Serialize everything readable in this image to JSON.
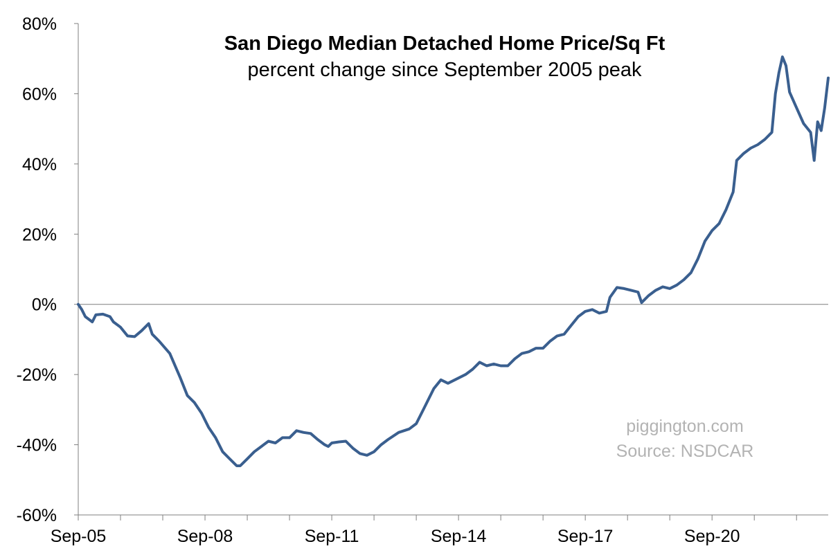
{
  "chart_data": {
    "type": "line",
    "title": "San Diego Median Detached Home Price/Sq Ft",
    "subtitle": "percent change since September 2005 peak",
    "xlabel": "",
    "ylabel": "",
    "ylim": [
      -60,
      80
    ],
    "y_ticks": [
      -60,
      -40,
      -20,
      0,
      20,
      40,
      60,
      80
    ],
    "y_tick_labels": [
      "-60%",
      "-40%",
      "-20%",
      "0%",
      "20%",
      "40%",
      "60%",
      "80%"
    ],
    "x_range": [
      "2005-09",
      "2023-06"
    ],
    "x_tick_labels": [
      "Sep-05",
      "Sep-08",
      "Sep-11",
      "Sep-14",
      "Sep-17",
      "Sep-20"
    ],
    "x_tick_dates": [
      "2005-09",
      "2008-09",
      "2011-09",
      "2014-09",
      "2017-09",
      "2020-09"
    ],
    "grid": false,
    "zero_line": true,
    "line_color": "#3a5f8f",
    "series": [
      {
        "points": [
          [
            "2005-09",
            0
          ],
          [
            "2005-10",
            -1.5
          ],
          [
            "2005-11",
            -3.5
          ],
          [
            "2006-01",
            -5
          ],
          [
            "2006-02",
            -3
          ],
          [
            "2006-04",
            -2.8
          ],
          [
            "2006-06",
            -3.5
          ],
          [
            "2006-07",
            -5
          ],
          [
            "2006-09",
            -6.5
          ],
          [
            "2006-11",
            -9
          ],
          [
            "2007-01",
            -9.2
          ],
          [
            "2007-03",
            -7.5
          ],
          [
            "2007-05",
            -5.5
          ],
          [
            "2007-06",
            -8.5
          ],
          [
            "2007-08",
            -10.5
          ],
          [
            "2007-11",
            -14
          ],
          [
            "2008-02",
            -21
          ],
          [
            "2008-04",
            -26
          ],
          [
            "2008-06",
            -28
          ],
          [
            "2008-08",
            -31
          ],
          [
            "2008-10",
            -35
          ],
          [
            "2008-12",
            -38
          ],
          [
            "2009-02",
            -42
          ],
          [
            "2009-04",
            -44
          ],
          [
            "2009-06",
            -46
          ],
          [
            "2009-07",
            -46
          ],
          [
            "2009-09",
            -44
          ],
          [
            "2009-11",
            -42
          ],
          [
            "2010-01",
            -40.5
          ],
          [
            "2010-03",
            -39
          ],
          [
            "2010-05",
            -39.5
          ],
          [
            "2010-07",
            -38
          ],
          [
            "2010-09",
            -38
          ],
          [
            "2010-11",
            -36
          ],
          [
            "2011-01",
            -36.5
          ],
          [
            "2011-03",
            -36.8
          ],
          [
            "2011-05",
            -38.5
          ],
          [
            "2011-07",
            -40
          ],
          [
            "2011-08",
            -40.5
          ],
          [
            "2011-09",
            -39.5
          ],
          [
            "2011-11",
            -39.2
          ],
          [
            "2012-01",
            -39
          ],
          [
            "2012-03",
            -41
          ],
          [
            "2012-05",
            -42.5
          ],
          [
            "2012-07",
            -43
          ],
          [
            "2012-09",
            -42
          ],
          [
            "2012-11",
            -40
          ],
          [
            "2013-01",
            -38.5
          ],
          [
            "2013-04",
            -36.5
          ],
          [
            "2013-07",
            -35.5
          ],
          [
            "2013-09",
            -34
          ],
          [
            "2013-11",
            -30
          ],
          [
            "2014-02",
            -24
          ],
          [
            "2014-04",
            -21.5
          ],
          [
            "2014-06",
            -22.5
          ],
          [
            "2014-09",
            -21
          ],
          [
            "2014-11",
            -20
          ],
          [
            "2015-01",
            -18.5
          ],
          [
            "2015-03",
            -16.5
          ],
          [
            "2015-05",
            -17.5
          ],
          [
            "2015-07",
            -17
          ],
          [
            "2015-09",
            -17.5
          ],
          [
            "2015-11",
            -17.5
          ],
          [
            "2016-01",
            -15.5
          ],
          [
            "2016-03",
            -14
          ],
          [
            "2016-05",
            -13.5
          ],
          [
            "2016-07",
            -12.5
          ],
          [
            "2016-09",
            -12.5
          ],
          [
            "2016-11",
            -10.5
          ],
          [
            "2017-01",
            -9
          ],
          [
            "2017-03",
            -8.5
          ],
          [
            "2017-05",
            -6
          ],
          [
            "2017-07",
            -3.5
          ],
          [
            "2017-09",
            -2
          ],
          [
            "2017-11",
            -1.5
          ],
          [
            "2018-01",
            -2.5
          ],
          [
            "2018-03",
            -2
          ],
          [
            "2018-04",
            2
          ],
          [
            "2018-06",
            4.8
          ],
          [
            "2018-08",
            4.5
          ],
          [
            "2018-10",
            4
          ],
          [
            "2018-12",
            3.5
          ],
          [
            "2019-01",
            0.5
          ],
          [
            "2019-03",
            2.5
          ],
          [
            "2019-05",
            4
          ],
          [
            "2019-07",
            5
          ],
          [
            "2019-09",
            4.5
          ],
          [
            "2019-11",
            5.5
          ],
          [
            "2020-01",
            7
          ],
          [
            "2020-03",
            9
          ],
          [
            "2020-05",
            13
          ],
          [
            "2020-07",
            18
          ],
          [
            "2020-09",
            21
          ],
          [
            "2020-11",
            23
          ],
          [
            "2021-01",
            27
          ],
          [
            "2021-03",
            32
          ],
          [
            "2021-04",
            41
          ],
          [
            "2021-06",
            43
          ],
          [
            "2021-08",
            44.5
          ],
          [
            "2021-10",
            45.5
          ],
          [
            "2021-12",
            47
          ],
          [
            "2022-02",
            49
          ],
          [
            "2022-03",
            60
          ],
          [
            "2022-04",
            66
          ],
          [
            "2022-05",
            70.5
          ],
          [
            "2022-06",
            68
          ],
          [
            "2022-07",
            60.5
          ],
          [
            "2022-09",
            56
          ],
          [
            "2022-11",
            51.5
          ],
          [
            "2023-01",
            49
          ],
          [
            "2023-02",
            41
          ],
          [
            "2023-03",
            52
          ],
          [
            "2023-04",
            49.5
          ],
          [
            "2023-05",
            56
          ],
          [
            "2023-06",
            64.5
          ]
        ]
      }
    ],
    "watermark": [
      "piggington.com",
      "Source: NSDCAR"
    ]
  }
}
